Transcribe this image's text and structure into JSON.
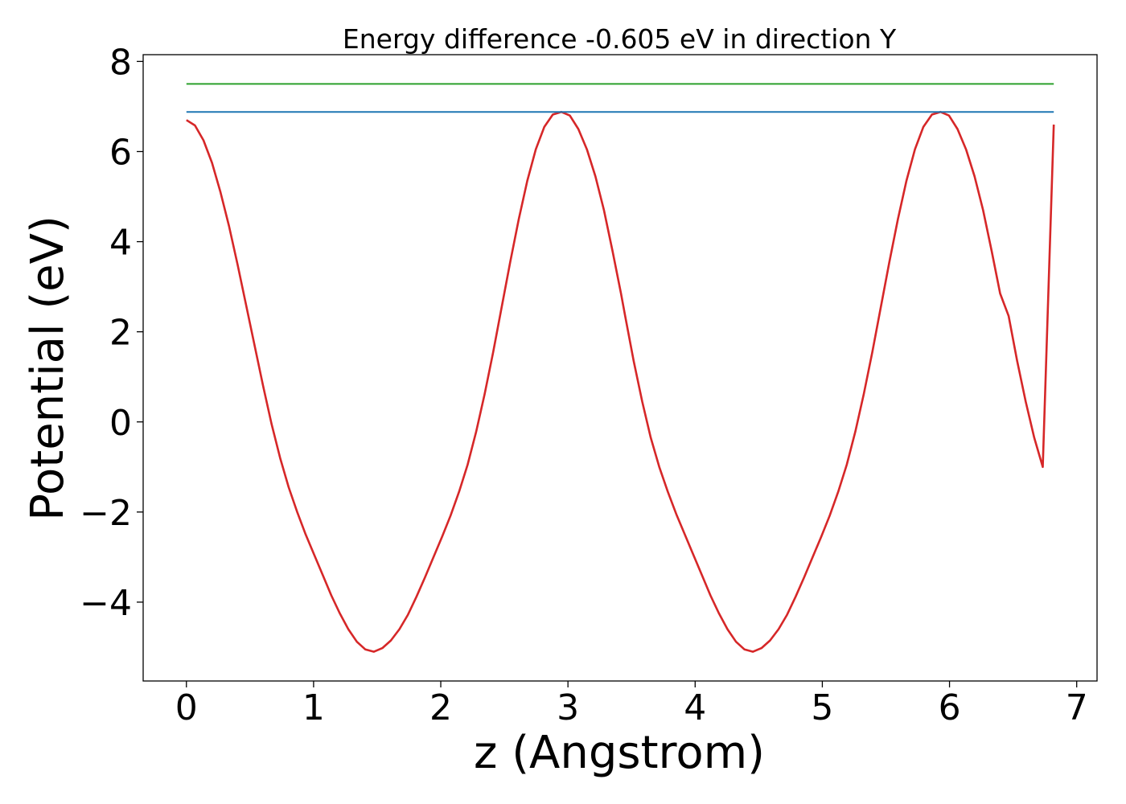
{
  "chart_data": {
    "type": "line",
    "title": "Energy difference -0.605 eV in direction Y",
    "xlabel": "z (Angstrom)",
    "ylabel": "Potential (eV)",
    "xlim": [
      -0.34,
      7.16
    ],
    "ylim": [
      -5.75,
      8.15
    ],
    "xticks": [
      0,
      1,
      2,
      3,
      4,
      5,
      6,
      7
    ],
    "xtick_labels": [
      "0",
      "1",
      "2",
      "3",
      "4",
      "5",
      "6",
      "7"
    ],
    "yticks": [
      -4,
      -2,
      0,
      2,
      4,
      6,
      8
    ],
    "ytick_labels": [
      "−4",
      "−2",
      "0",
      "2",
      "4",
      "6",
      "8"
    ],
    "grid": false,
    "series": [
      {
        "color": "#d62728",
        "x": [
          0.0,
          0.067,
          0.134,
          0.201,
          0.268,
          0.335,
          0.402,
          0.469,
          0.536,
          0.603,
          0.67,
          0.737,
          0.804,
          0.871,
          0.938,
          1.005,
          1.072,
          1.139,
          1.206,
          1.273,
          1.34,
          1.407,
          1.474,
          1.541,
          1.608,
          1.675,
          1.742,
          1.809,
          1.876,
          1.943,
          2.01,
          2.077,
          2.144,
          2.211,
          2.278,
          2.345,
          2.412,
          2.479,
          2.546,
          2.613,
          2.68,
          2.747,
          2.814,
          2.881,
          2.948,
          3.015,
          3.082,
          3.149,
          3.216,
          3.283,
          3.35,
          3.417,
          3.45,
          3.517,
          3.584,
          3.651,
          3.718,
          3.785,
          3.852,
          3.919,
          3.986,
          4.053,
          4.12,
          4.187,
          4.254,
          4.321,
          4.388,
          4.455,
          4.522,
          4.589,
          4.656,
          4.723,
          4.79,
          4.857,
          4.924,
          4.991,
          5.058,
          5.125,
          5.192,
          5.259,
          5.326,
          5.393,
          5.46,
          5.527,
          5.594,
          5.661,
          5.728,
          5.795,
          5.862,
          5.929,
          5.996,
          6.063,
          6.13,
          6.197,
          6.264,
          6.331,
          6.398,
          6.465,
          6.532,
          6.599,
          6.666,
          6.733,
          6.82
        ],
        "y": [
          6.7,
          6.58,
          6.25,
          5.75,
          5.1,
          4.35,
          3.5,
          2.6,
          1.7,
          0.8,
          -0.05,
          -0.8,
          -1.45,
          -2.0,
          -2.5,
          -2.95,
          -3.4,
          -3.85,
          -4.25,
          -4.6,
          -4.88,
          -5.05,
          -5.1,
          -5.02,
          -4.85,
          -4.6,
          -4.28,
          -3.88,
          -3.45,
          -3.0,
          -2.55,
          -2.08,
          -1.55,
          -0.95,
          -0.22,
          0.62,
          1.55,
          2.55,
          3.55,
          4.5,
          5.35,
          6.05,
          6.55,
          6.82,
          6.88,
          6.8,
          6.5,
          6.05,
          5.45,
          4.7,
          3.8,
          2.85,
          2.35,
          1.35,
          0.45,
          -0.35,
          -1.0,
          -1.55,
          -2.05,
          -2.5,
          -2.95,
          -3.4,
          -3.85,
          -4.25,
          -4.6,
          -4.88,
          -5.05,
          -5.1,
          -5.02,
          -4.85,
          -4.6,
          -4.28,
          -3.88,
          -3.45,
          -3.0,
          -2.55,
          -2.08,
          -1.55,
          -0.95,
          -0.22,
          0.62,
          1.55,
          2.55,
          3.55,
          4.5,
          5.35,
          6.05,
          6.55,
          6.82,
          6.88,
          6.8,
          6.5,
          6.05,
          5.45,
          4.7,
          3.8,
          2.85,
          2.35,
          1.35,
          0.45,
          -0.35,
          -1.0,
          6.6
        ]
      },
      {
        "color": "#1f77b4",
        "x": [
          0.0,
          6.82
        ],
        "y": [
          6.88,
          6.88
        ]
      },
      {
        "color": "#2ca02c",
        "x": [
          0.0,
          6.82
        ],
        "y": [
          7.5,
          7.5
        ]
      }
    ]
  }
}
